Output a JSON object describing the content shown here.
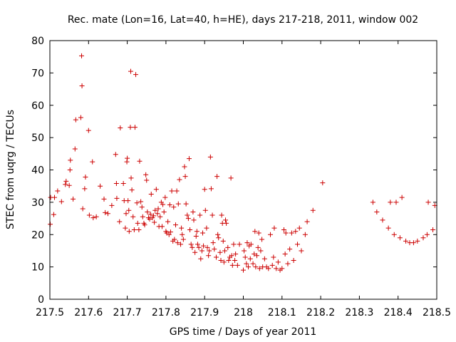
{
  "chart_data": {
    "type": "scatter",
    "title": "Rec. mate (Lon=16, Lat=40, h=HE), days 217-218, 2011, window 002",
    "xlabel": "GPS time / Days of year 2011",
    "ylabel": "STEC from uqrg / TECUs",
    "xlim": [
      217.5,
      218.5
    ],
    "ylim": [
      0,
      80
    ],
    "xticks": [
      217.5,
      217.6,
      217.7,
      217.8,
      217.9,
      218.0,
      218.1,
      218.2,
      218.3,
      218.4,
      218.5
    ],
    "xtick_labels": [
      "217.5",
      "217.6",
      "217.7",
      "217.8",
      "217.9",
      "218",
      "218.1",
      "218.2",
      "218.3",
      "218.4",
      "218.5"
    ],
    "yticks": [
      0,
      10,
      20,
      30,
      40,
      50,
      60,
      70,
      80
    ],
    "ytick_labels": [
      "0",
      "10",
      "20",
      "30",
      "40",
      "50",
      "60",
      "70",
      "80"
    ],
    "grid": false,
    "marker": "+",
    "marker_color": "#cc0000",
    "points": [
      [
        217.501,
        23.2
      ],
      [
        217.502,
        31.5
      ],
      [
        217.51,
        26.2
      ],
      [
        217.512,
        31.5
      ],
      [
        217.52,
        33.5
      ],
      [
        217.53,
        30.2
      ],
      [
        217.54,
        35.5
      ],
      [
        217.542,
        36.5
      ],
      [
        217.55,
        35.2
      ],
      [
        217.552,
        40
      ],
      [
        217.553,
        43
      ],
      [
        217.56,
        31
      ],
      [
        217.565,
        46.5
      ],
      [
        217.567,
        55.5
      ],
      [
        217.58,
        56.2
      ],
      [
        217.582,
        75.3
      ],
      [
        217.583,
        66
      ],
      [
        217.585,
        28
      ],
      [
        217.59,
        34.2
      ],
      [
        217.592,
        37.8
      ],
      [
        217.6,
        52.2
      ],
      [
        217.602,
        26
      ],
      [
        217.61,
        42.5
      ],
      [
        217.612,
        25.2
      ],
      [
        217.62,
        25.5
      ],
      [
        217.63,
        35
      ],
      [
        217.64,
        31
      ],
      [
        217.643,
        26.8
      ],
      [
        217.65,
        26.5
      ],
      [
        217.66,
        29
      ],
      [
        217.67,
        44.8
      ],
      [
        217.672,
        35.8
      ],
      [
        217.673,
        31.2
      ],
      [
        217.68,
        24
      ],
      [
        217.682,
        53
      ],
      [
        217.69,
        35.8
      ],
      [
        217.692,
        30.5
      ],
      [
        217.695,
        22
      ],
      [
        217.697,
        26.5
      ],
      [
        217.699,
        42.5
      ],
      [
        217.7,
        43.6
      ],
      [
        217.702,
        30.5
      ],
      [
        217.704,
        27.5
      ],
      [
        217.705,
        21
      ],
      [
        217.708,
        53.2
      ],
      [
        217.709,
        70.5
      ],
      [
        217.71,
        37.5
      ],
      [
        217.712,
        33.8
      ],
      [
        217.715,
        25.5
      ],
      [
        217.718,
        21.5
      ],
      [
        217.72,
        53.2
      ],
      [
        217.722,
        69.5
      ],
      [
        217.725,
        29.8
      ],
      [
        217.727,
        23.5
      ],
      [
        217.73,
        21.5
      ],
      [
        217.732,
        42.7
      ],
      [
        217.735,
        30.2
      ],
      [
        217.738,
        28.5
      ],
      [
        217.74,
        25.5
      ],
      [
        217.743,
        23.5
      ],
      [
        217.745,
        23
      ],
      [
        217.748,
        38.5
      ],
      [
        217.75,
        36.8
      ],
      [
        217.752,
        27
      ],
      [
        217.755,
        25.2
      ],
      [
        217.758,
        24.8
      ],
      [
        217.76,
        26.3
      ],
      [
        217.762,
        32.5
      ],
      [
        217.765,
        25.2
      ],
      [
        217.768,
        25.8
      ],
      [
        217.77,
        23.8
      ],
      [
        217.772,
        27.5
      ],
      [
        217.775,
        34
      ],
      [
        217.778,
        26.5
      ],
      [
        217.78,
        28
      ],
      [
        217.782,
        22.5
      ],
      [
        217.785,
        25.5
      ],
      [
        217.788,
        30
      ],
      [
        217.79,
        22.5
      ],
      [
        217.792,
        29.3
      ],
      [
        217.795,
        27
      ],
      [
        217.798,
        31.5
      ],
      [
        217.8,
        21
      ],
      [
        217.802,
        20.5
      ],
      [
        217.805,
        24
      ],
      [
        217.808,
        20
      ],
      [
        217.81,
        29.2
      ],
      [
        217.812,
        20.8
      ],
      [
        217.815,
        33.5
      ],
      [
        217.818,
        18
      ],
      [
        217.82,
        28.5
      ],
      [
        217.822,
        18.5
      ],
      [
        217.825,
        23
      ],
      [
        217.828,
        33.5
      ],
      [
        217.83,
        17.5
      ],
      [
        217.832,
        29.5
      ],
      [
        217.835,
        37
      ],
      [
        217.838,
        17
      ],
      [
        217.84,
        22
      ],
      [
        217.842,
        20
      ],
      [
        217.845,
        18.5
      ],
      [
        217.848,
        41
      ],
      [
        217.85,
        38
      ],
      [
        217.852,
        29.5
      ],
      [
        217.855,
        26
      ],
      [
        217.858,
        25
      ],
      [
        217.86,
        43.5
      ],
      [
        217.862,
        21.5
      ],
      [
        217.865,
        17
      ],
      [
        217.868,
        16
      ],
      [
        217.87,
        27
      ],
      [
        217.872,
        24.5
      ],
      [
        217.875,
        14.5
      ],
      [
        217.878,
        19.5
      ],
      [
        217.88,
        21
      ],
      [
        217.882,
        17
      ],
      [
        217.885,
        16
      ],
      [
        217.888,
        26
      ],
      [
        217.89,
        12.5
      ],
      [
        217.893,
        15
      ],
      [
        217.895,
        20.5
      ],
      [
        217.897,
        16.5
      ],
      [
        217.9,
        34
      ],
      [
        217.902,
        27.5
      ],
      [
        217.905,
        22
      ],
      [
        217.907,
        16
      ],
      [
        217.91,
        13.5
      ],
      [
        217.912,
        15
      ],
      [
        217.915,
        44
      ],
      [
        217.917,
        34.2
      ],
      [
        217.92,
        26
      ],
      [
        217.922,
        17.5
      ],
      [
        217.925,
        15.5
      ],
      [
        217.93,
        13
      ],
      [
        217.932,
        38
      ],
      [
        217.934,
        20
      ],
      [
        217.936,
        19
      ],
      [
        217.94,
        14.5
      ],
      [
        217.942,
        12
      ],
      [
        217.944,
        26
      ],
      [
        217.946,
        23.5
      ],
      [
        217.948,
        18
      ],
      [
        217.95,
        11.5
      ],
      [
        217.952,
        15
      ],
      [
        217.954,
        24.5
      ],
      [
        217.956,
        23.5
      ],
      [
        217.96,
        16
      ],
      [
        217.962,
        12
      ],
      [
        217.965,
        13
      ],
      [
        217.968,
        37.5
      ],
      [
        217.97,
        13.5
      ],
      [
        217.972,
        10.5
      ],
      [
        217.975,
        17
      ],
      [
        217.978,
        12
      ],
      [
        217.98,
        14
      ],
      [
        217.985,
        10.5
      ],
      [
        217.99,
        17
      ],
      [
        218.0,
        9
      ],
      [
        218.002,
        15
      ],
      [
        218.005,
        13
      ],
      [
        218.008,
        11
      ],
      [
        218.01,
        17.5
      ],
      [
        218.013,
        10
      ],
      [
        218.015,
        16.5
      ],
      [
        218.018,
        12.5
      ],
      [
        218.02,
        17
      ],
      [
        218.025,
        11
      ],
      [
        218.028,
        14
      ],
      [
        218.03,
        21
      ],
      [
        218.032,
        10
      ],
      [
        218.035,
        13.5
      ],
      [
        218.038,
        16
      ],
      [
        218.04,
        20.5
      ],
      [
        218.042,
        9.5
      ],
      [
        218.045,
        15
      ],
      [
        218.048,
        18.5
      ],
      [
        218.05,
        10
      ],
      [
        218.055,
        12.5
      ],
      [
        218.06,
        10
      ],
      [
        218.065,
        9.5
      ],
      [
        218.07,
        20
      ],
      [
        218.075,
        10.5
      ],
      [
        218.078,
        13
      ],
      [
        218.08,
        22
      ],
      [
        218.085,
        9.5
      ],
      [
        218.09,
        11.5
      ],
      [
        218.095,
        9
      ],
      [
        218.1,
        9.5
      ],
      [
        218.105,
        21.5
      ],
      [
        218.108,
        14
      ],
      [
        218.11,
        20.5
      ],
      [
        218.115,
        11
      ],
      [
        218.12,
        15.5
      ],
      [
        218.125,
        20.5
      ],
      [
        218.13,
        12
      ],
      [
        218.135,
        21
      ],
      [
        218.14,
        17
      ],
      [
        218.145,
        22
      ],
      [
        218.15,
        15
      ],
      [
        218.16,
        20
      ],
      [
        218.165,
        24
      ],
      [
        218.18,
        27.5
      ],
      [
        218.205,
        36
      ],
      [
        218.335,
        30
      ],
      [
        218.345,
        27
      ],
      [
        218.36,
        24.5
      ],
      [
        218.375,
        22
      ],
      [
        218.38,
        30
      ],
      [
        218.39,
        20
      ],
      [
        218.395,
        30
      ],
      [
        218.405,
        19
      ],
      [
        218.41,
        31.5
      ],
      [
        218.42,
        18
      ],
      [
        218.43,
        17.5
      ],
      [
        218.44,
        17.5
      ],
      [
        218.45,
        18
      ],
      [
        218.465,
        19
      ],
      [
        218.475,
        20
      ],
      [
        218.478,
        30
      ],
      [
        218.49,
        21.5
      ],
      [
        218.495,
        29
      ]
    ]
  }
}
